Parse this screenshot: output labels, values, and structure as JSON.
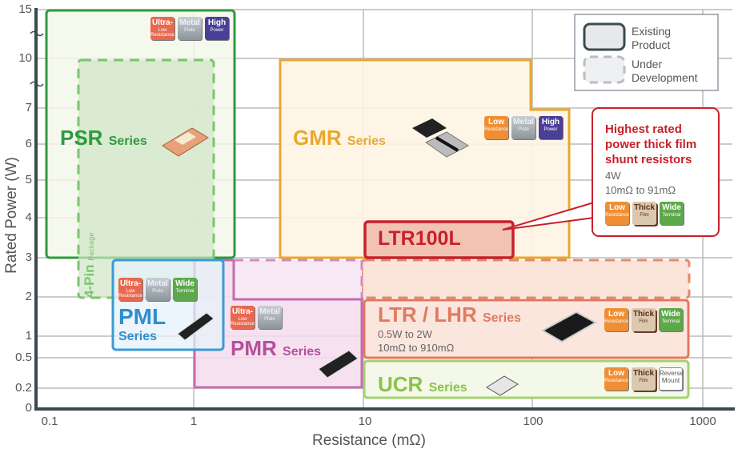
{
  "axes": {
    "y_title": "Rated Power (W)",
    "x_title": "Resistance (mΩ)",
    "y_ticks": [
      "15",
      "10",
      "7",
      "6",
      "5",
      "4",
      "3",
      "2",
      "1",
      "0.5",
      "0.2",
      "0"
    ],
    "x_ticks": [
      "0.1",
      "1",
      "10",
      "100",
      "1000"
    ],
    "x_scale": "log"
  },
  "legend": {
    "existing": "Existing Product",
    "under_development": "Under Development"
  },
  "series": {
    "psr": {
      "name": "PSR",
      "suffix": "Series",
      "chips": [
        {
          "main": "Ultra-",
          "sub": "Low Resistance"
        },
        {
          "main": "Metal",
          "sub": "Plate"
        },
        {
          "main": "High",
          "sub": "Power"
        }
      ]
    },
    "four_pin": {
      "main": "4-Pin",
      "sub": "Package"
    },
    "gmr": {
      "name": "GMR",
      "suffix": "Series",
      "chips": [
        {
          "main": "Low",
          "sub": "Resistance"
        },
        {
          "main": "Metal",
          "sub": "Plate"
        },
        {
          "main": "High",
          "sub": "Power"
        }
      ]
    },
    "pml": {
      "name": "PML",
      "suffix": "Series",
      "chips": [
        {
          "main": "Ultra-",
          "sub": "Low Resistance"
        },
        {
          "main": "Metal",
          "sub": "Plate"
        },
        {
          "main": "Wide",
          "sub": "Terminal"
        }
      ]
    },
    "pmr": {
      "name": "PMR",
      "suffix": "Series",
      "chips": [
        {
          "main": "Ultra-",
          "sub": "Low Resistance"
        },
        {
          "main": "Metal",
          "sub": "Plate"
        }
      ]
    },
    "ltr100l": {
      "name": "LTR100L"
    },
    "ltr_lhr": {
      "name": "LTR / LHR",
      "suffix": "Series",
      "power": "0.5W to 2W",
      "range": "10mΩ to 910mΩ",
      "chips": [
        {
          "main": "Low",
          "sub": "Resistance"
        },
        {
          "main": "Thick",
          "sub": "Film"
        },
        {
          "main": "Wide",
          "sub": "Terminal"
        }
      ]
    },
    "ucr": {
      "name": "UCR",
      "suffix": "Series",
      "chips": [
        {
          "main": "Low",
          "sub": "Resistance"
        },
        {
          "main": "Thick",
          "sub": "Film"
        },
        {
          "main": "Reverse",
          "sub": "Mount"
        }
      ]
    }
  },
  "callout": {
    "title": "Highest rated power thick film shunt resistors",
    "power": "4W",
    "range": "10mΩ to 91mΩ",
    "chips": [
      {
        "main": "Low",
        "sub": "Resistance"
      },
      {
        "main": "Thick",
        "sub": "Film"
      },
      {
        "main": "Wide",
        "sub": "Terminal"
      }
    ]
  },
  "colors": {
    "psr": "#2e9a3e",
    "gmr": "#e8a92a",
    "pml": "#3a9ad6",
    "pmr": "#b4509a",
    "ltr": "#e07a5f",
    "ltr100l": "#c8202b",
    "ucr": "#8cc24a"
  }
}
